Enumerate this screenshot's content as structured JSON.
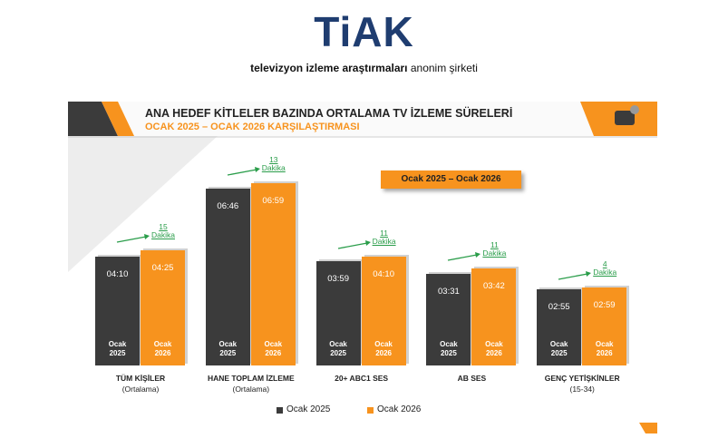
{
  "header": {
    "logo": "TiAK",
    "tagline": [
      "televizyon izleme araştırmaları",
      "anonim şirketi"
    ]
  },
  "chart_data": {
    "type": "bar",
    "title": "ANA HEDEF KİTLELER BAZINDA ORTALAMA TV İZLEME SÜRELERİ",
    "subtitle": "OCAK 2025 – OCAK 2026 KARŞILAŞTIRMASI",
    "annotation": "Ocak 2025 – Ocak 2026",
    "categories": [
      "TÜM KİŞİLER",
      "HANE TOPLAM İZLEME",
      "20+ ABC1 SES",
      "AB SES",
      "GENÇ YETİŞKİNLER"
    ],
    "category_notes": [
      "(Ortalama)",
      "(Ortalama)",
      null,
      null,
      "(15-34)"
    ],
    "series": [
      {
        "name": "Ocak 2025",
        "color": "#3b3b3b",
        "values": [
          250,
          406,
          239,
          211,
          175
        ],
        "value_labels": [
          "04:10",
          "06:46",
          "03:59",
          "03:31",
          "02:55"
        ]
      },
      {
        "name": "Ocak 2026",
        "color": "#f7931e",
        "values": [
          265,
          419,
          250,
          222,
          179
        ],
        "value_labels": [
          "04:25",
          "06:59",
          "04:10",
          "03:42",
          "02:59"
        ]
      }
    ],
    "differences": [
      15,
      13,
      11,
      11,
      4
    ],
    "difference_unit": "Dakika"
  }
}
